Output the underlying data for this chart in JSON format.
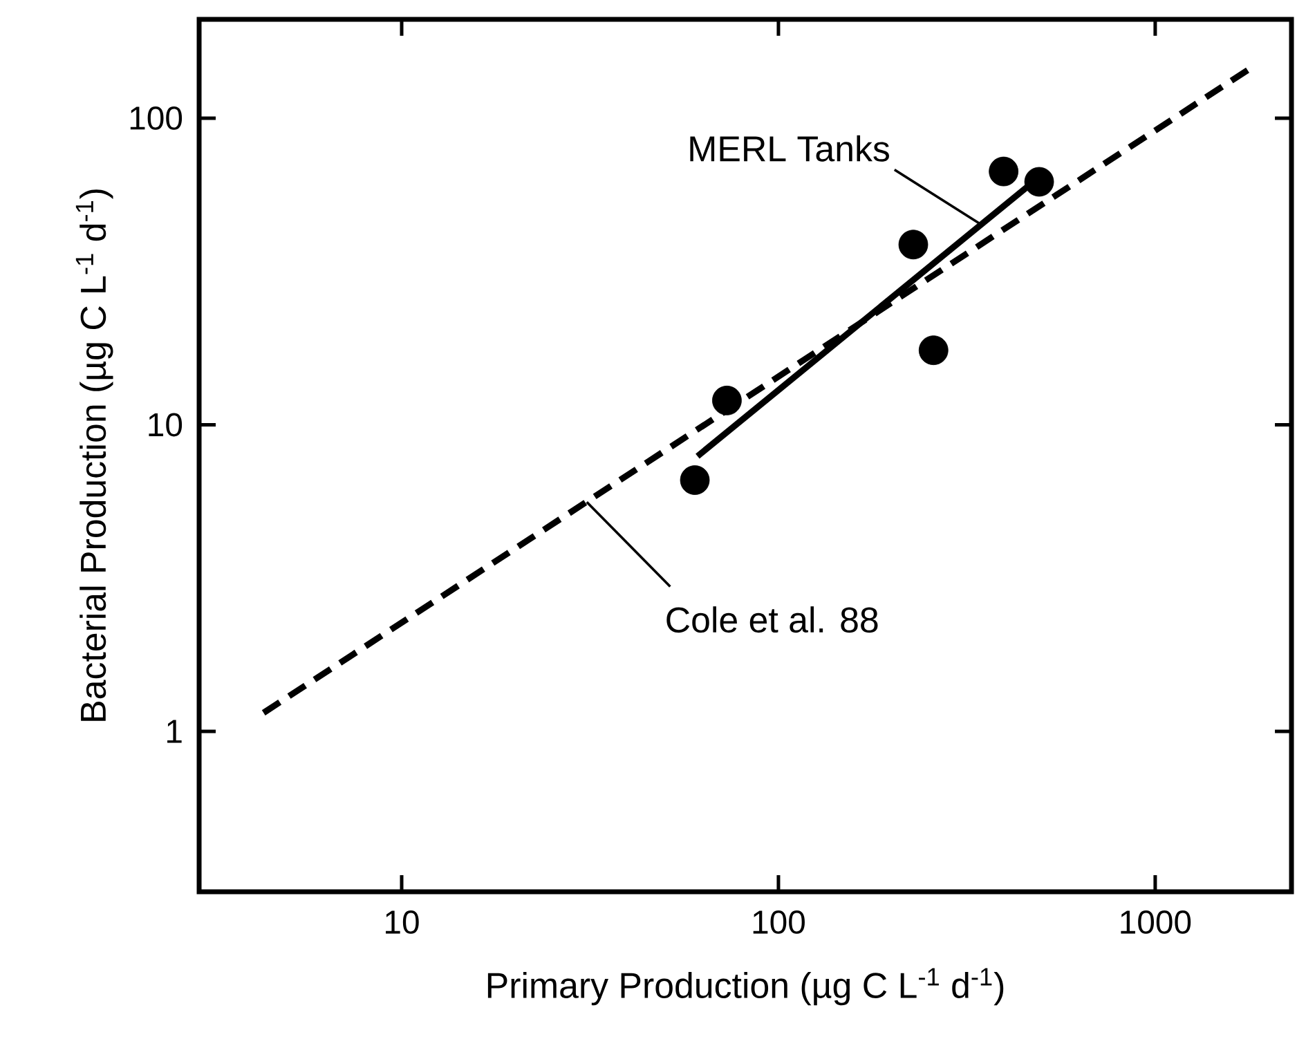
{
  "chart_data": {
    "type": "scatter",
    "xlabel": "Primary Production (µg C L$^{-1}$ d$^{-1}$)",
    "ylabel": "Bacterial Production (µg C L$^{-1}$ d$^{-1}$)",
    "log": "xy",
    "xlim": [
      2.9,
      2300
    ],
    "ylim": [
      0.3,
      210
    ],
    "xticks": [
      10,
      100,
      1000
    ],
    "yticks": [
      1,
      10,
      100
    ],
    "grid": false,
    "series": [
      {
        "type": "scatter",
        "color": "#000000",
        "marker": "circle",
        "x": [
          60,
          73,
          228,
          258,
          396,
          492
        ],
        "values": [
          6.6,
          12,
          38.7,
          17.5,
          67,
          62
        ]
      },
      {
        "type": "line",
        "color": "#000000",
        "line_style": "solid",
        "marker": "none",
        "x": [
          61,
          460
        ],
        "values": [
          7.9,
          60
        ]
      },
      {
        "type": "line",
        "color": "#000000",
        "line_style": "dashed",
        "marker": "none",
        "x": [
          4.3,
          1830
        ],
        "values": [
          1.15,
          148
        ]
      }
    ],
    "annotations": [
      {
        "text": "MERL Tanks",
        "x": 345,
        "y": 45
      },
      {
        "text": "Cole et al. 88",
        "x": 31,
        "y": 5.6
      }
    ]
  }
}
